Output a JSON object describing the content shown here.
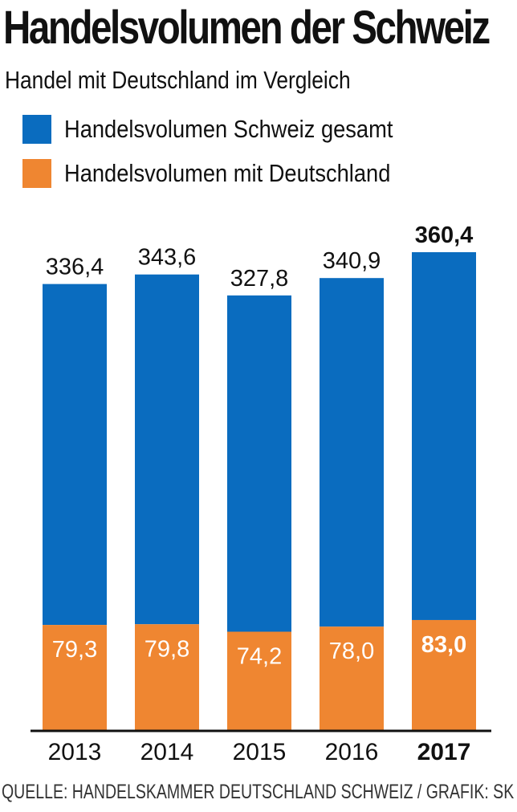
{
  "header": {
    "title": "Handelsvolumen der Schweiz",
    "subtitle": "Handel mit Deutschland im Vergleich"
  },
  "legend": [
    {
      "label": "Handelsvolumen Schweiz gesamt",
      "color": "#0a6cbf"
    },
    {
      "label": "Handelsvolumen mit Deutschland",
      "color": "#ef8631"
    }
  ],
  "chart_data": {
    "type": "bar",
    "title": "Handelsvolumen der Schweiz",
    "subtitle": "Handel mit Deutschland im Vergleich",
    "categories": [
      "2013",
      "2014",
      "2015",
      "2016",
      "2017"
    ],
    "highlight_category": "2017",
    "series": [
      {
        "name": "Handelsvolumen Schweiz gesamt",
        "color": "#0a6cbf",
        "values": [
          336.4,
          343.6,
          327.8,
          340.9,
          360.4
        ],
        "labels": [
          "336,4",
          "343,6",
          "327,8",
          "340,9",
          "360,4"
        ]
      },
      {
        "name": "Handelsvolumen mit Deutschland",
        "color": "#ef8631",
        "values": [
          79.3,
          79.8,
          74.2,
          78.0,
          83.0
        ],
        "labels": [
          "79,3",
          "79,8",
          "74,2",
          "78,0",
          "83,0"
        ]
      }
    ],
    "ylim": [
      0,
      360.4
    ],
    "grid": false,
    "xlabel": "",
    "ylabel": "",
    "legend_position": "top-left"
  },
  "footer": {
    "source": "QUELLE: HANDELSKAMMER DEUTSCHLAND SCHWEIZ / GRAFIK: SK"
  }
}
